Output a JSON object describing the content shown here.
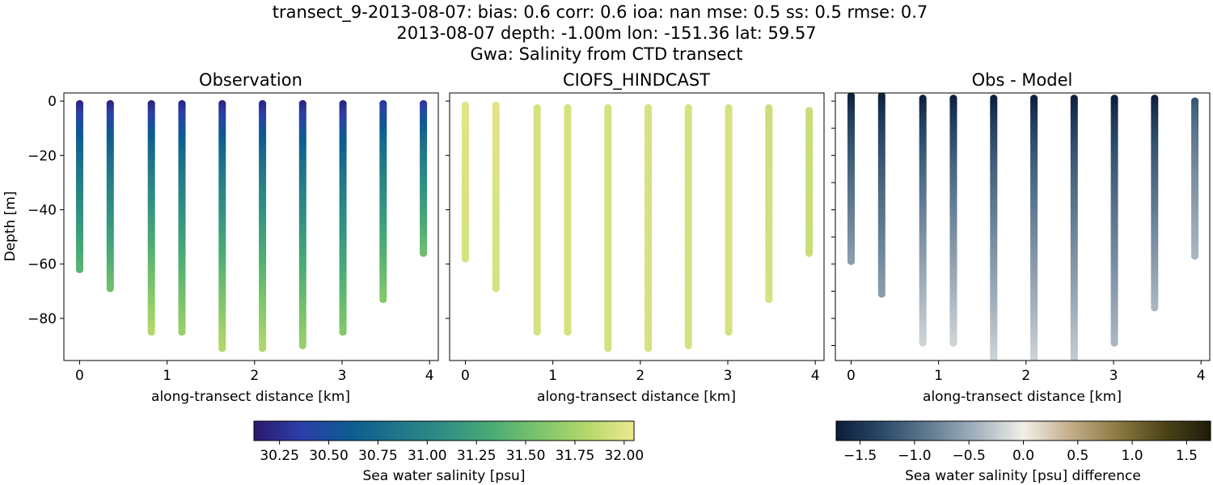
{
  "figure": {
    "title_lines": [
      "transect_9-2013-08-07: bias: 0.6  corr: 0.6  ioa: nan  mse: 0.5  ss: 0.5  rmse: 0.7",
      "2013-08-07 depth: -1.00m lon: -151.36 lat: 59.57",
      "Gwa: Salinity from CTD transect"
    ]
  },
  "chart_data": [
    {
      "type": "scatter",
      "title": "Observation",
      "xlabel": "along-transect distance [km]",
      "ylabel": "Depth [m]",
      "xlim": [
        -0.18,
        4.1
      ],
      "ylim": [
        -95.5,
        3
      ],
      "xticks": [
        0,
        1,
        2,
        3,
        4
      ],
      "yticks": [
        0,
        -20,
        -40,
        -60,
        -80
      ],
      "colormap": "salinity",
      "casts": [
        {
          "x": 0.0,
          "top": -1,
          "bottom": -62,
          "surface_value": 30.2,
          "deep_value": 31.4
        },
        {
          "x": 0.35,
          "top": -1,
          "bottom": -69,
          "surface_value": 30.2,
          "deep_value": 31.5
        },
        {
          "x": 0.82,
          "top": -1,
          "bottom": -85,
          "surface_value": 30.2,
          "deep_value": 31.8
        },
        {
          "x": 1.17,
          "top": -1,
          "bottom": -85,
          "surface_value": 30.2,
          "deep_value": 31.7
        },
        {
          "x": 1.63,
          "top": -1,
          "bottom": -91,
          "surface_value": 30.2,
          "deep_value": 31.8
        },
        {
          "x": 2.09,
          "top": -1,
          "bottom": -91,
          "surface_value": 30.2,
          "deep_value": 31.8
        },
        {
          "x": 2.55,
          "top": -1,
          "bottom": -90,
          "surface_value": 30.2,
          "deep_value": 31.7
        },
        {
          "x": 3.01,
          "top": -1,
          "bottom": -85,
          "surface_value": 30.2,
          "deep_value": 31.6
        },
        {
          "x": 3.47,
          "top": -1,
          "bottom": -73,
          "surface_value": 30.3,
          "deep_value": 31.6
        },
        {
          "x": 3.93,
          "top": -1,
          "bottom": -56,
          "surface_value": 30.3,
          "deep_value": 31.5
        }
      ]
    },
    {
      "type": "scatter",
      "title": "CIOFS_HINDCAST",
      "xlabel": "along-transect distance [km]",
      "ylabel": "",
      "xlim": [
        -0.18,
        4.1
      ],
      "ylim": [
        -95.5,
        3
      ],
      "xticks": [
        0,
        1,
        2,
        3,
        4
      ],
      "yticks": [
        0,
        -20,
        -40,
        -60,
        -80
      ],
      "colormap": "salinity",
      "casts": [
        {
          "x": 0.0,
          "top": -1.5,
          "bottom": -58,
          "surface_value": 32.0,
          "deep_value": 31.95
        },
        {
          "x": 0.35,
          "top": -1.5,
          "bottom": -69,
          "surface_value": 32.0,
          "deep_value": 31.95
        },
        {
          "x": 0.82,
          "top": -2.5,
          "bottom": -85,
          "surface_value": 31.95,
          "deep_value": 31.95
        },
        {
          "x": 1.17,
          "top": -2.5,
          "bottom": -85,
          "surface_value": 31.95,
          "deep_value": 31.95
        },
        {
          "x": 1.63,
          "top": -2.5,
          "bottom": -91,
          "surface_value": 31.95,
          "deep_value": 31.95
        },
        {
          "x": 2.09,
          "top": -2.5,
          "bottom": -91,
          "surface_value": 31.95,
          "deep_value": 31.95
        },
        {
          "x": 2.55,
          "top": -2.5,
          "bottom": -90,
          "surface_value": 31.95,
          "deep_value": 31.95
        },
        {
          "x": 3.01,
          "top": -2.5,
          "bottom": -85,
          "surface_value": 31.95,
          "deep_value": 31.95
        },
        {
          "x": 3.47,
          "top": -2.5,
          "bottom": -73,
          "surface_value": 31.9,
          "deep_value": 31.95
        },
        {
          "x": 3.93,
          "top": -3.5,
          "bottom": -56,
          "surface_value": 31.9,
          "deep_value": 31.9
        }
      ]
    },
    {
      "type": "scatter",
      "title": "Obs - Model",
      "xlabel": "along-transect distance [km]",
      "ylabel": "",
      "xlim": [
        -0.18,
        4.1
      ],
      "ylim": [
        -95.5,
        3
      ],
      "xticks": [
        0,
        1,
        2,
        3,
        4
      ],
      "yticks": [
        0,
        -20,
        -40,
        -60,
        -80
      ],
      "colormap": "difference",
      "casts": [
        {
          "x": 0.0,
          "top": 2,
          "bottom": -59,
          "surface_value": -1.7,
          "deep_value": -0.6
        },
        {
          "x": 0.35,
          "top": 2,
          "bottom": -71,
          "surface_value": -1.7,
          "deep_value": -0.6
        },
        {
          "x": 0.82,
          "top": 1,
          "bottom": -89,
          "surface_value": -1.7,
          "deep_value": -0.2
        },
        {
          "x": 1.17,
          "top": 1,
          "bottom": -89,
          "surface_value": -1.7,
          "deep_value": -0.2
        },
        {
          "x": 1.63,
          "top": 1,
          "bottom": -96,
          "surface_value": -1.7,
          "deep_value": -0.2
        },
        {
          "x": 2.09,
          "top": 1,
          "bottom": -96,
          "surface_value": -1.7,
          "deep_value": -0.2
        },
        {
          "x": 2.55,
          "top": 1,
          "bottom": -96,
          "surface_value": -1.7,
          "deep_value": -0.25
        },
        {
          "x": 3.01,
          "top": 1,
          "bottom": -89,
          "surface_value": -1.7,
          "deep_value": -0.4
        },
        {
          "x": 3.47,
          "top": 1,
          "bottom": -76,
          "surface_value": -1.7,
          "deep_value": -0.4
        },
        {
          "x": 3.93,
          "top": 0,
          "bottom": -57,
          "surface_value": -1.2,
          "deep_value": -0.4
        }
      ]
    }
  ],
  "colorbars": [
    {
      "label": "Sea water salinity [psu]",
      "vmin": 30.12,
      "vmax": 32.05,
      "ticks": [
        "30.25",
        "30.50",
        "30.75",
        "31.00",
        "31.25",
        "31.50",
        "31.75",
        "32.00"
      ],
      "colormap": "salinity"
    },
    {
      "label": "Sea water salinity [psu] difference",
      "vmin": -1.72,
      "vmax": 1.72,
      "ticks": [
        "−1.5",
        "−1.0",
        "−0.5",
        "0.0",
        "0.5",
        "1.0",
        "1.5"
      ],
      "colormap": "difference"
    }
  ],
  "colormaps": {
    "salinity": [
      "#2a1a6e",
      "#2c3ea8",
      "#0d5b92",
      "#1f7589",
      "#2f8f83",
      "#4aab75",
      "#7cc46b",
      "#b3d86a",
      "#eee890"
    ],
    "difference": [
      "#0b1d3a",
      "#2c4a6a",
      "#627c92",
      "#a4b2be",
      "#f2efe8",
      "#c2ae8a",
      "#8d7a42",
      "#4e4419",
      "#1d1c0a"
    ]
  }
}
